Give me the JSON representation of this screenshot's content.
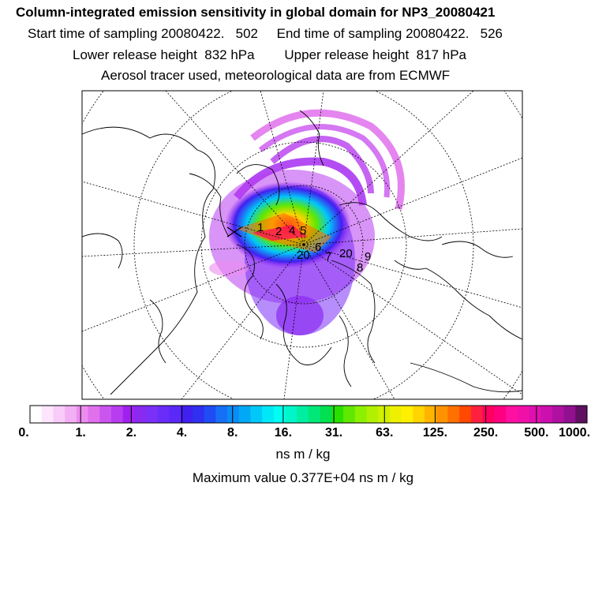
{
  "header": {
    "title": "Column-integrated emission sensitivity in global domain for NP3_20080421",
    "sampling_line": "Start time of sampling 20080422.   502     End time of sampling 20080422.   526",
    "release_line": "Lower release height  832 hPa        Upper release height  817 hPa",
    "info_line": "Aerosol tracer used, meteorological data are from ECMWF"
  },
  "colorbar": {
    "labels": [
      "0.",
      "1.",
      "2.",
      "4.",
      "8.",
      "16.",
      "31.",
      "63.",
      "125.",
      "250.",
      "500.",
      "1000."
    ],
    "colors": [
      "#ffffff",
      "#fde6fd",
      "#f8ccf8",
      "#f2b0f4",
      "#ec8cf0",
      "#e070ec",
      "#cc55f0",
      "#b83cf0",
      "#a020f0",
      "#8a2af0",
      "#7a30f8",
      "#6a2cf8",
      "#5a28f8",
      "#4020f0",
      "#3030f0",
      "#1f4cf5",
      "#1670f5",
      "#0a8cf5",
      "#00a8f5",
      "#00c8f8",
      "#00e8f8",
      "#00fff0",
      "#00f5c8",
      "#00eea0",
      "#00e878",
      "#00e050",
      "#28e000",
      "#60e800",
      "#8cf000",
      "#b0f000",
      "#d0f000",
      "#eef000",
      "#fff000",
      "#ffd400",
      "#ffb400",
      "#ff9200",
      "#ff7000",
      "#ff4800",
      "#ff2040",
      "#ff0060",
      "#ff0080",
      "#ff10a0",
      "#f010a8",
      "#e010b0",
      "#cc10b0",
      "#b010a0",
      "#901090",
      "#601060"
    ],
    "units": "ns m / kg",
    "max_value_text": "Maximum value  0.377E+04 ns m / kg"
  },
  "map": {
    "projection": "north-polar-stereographic",
    "track_labels": [
      "1",
      "2",
      "4",
      "5",
      "6",
      "7",
      "8",
      "9",
      "20",
      "20"
    ]
  }
}
